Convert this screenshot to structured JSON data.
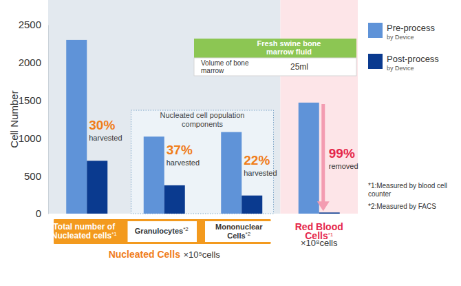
{
  "chart_data": {
    "type": "bar",
    "ylabel": "Cell Number",
    "categories": [
      "Total number of Nucleated cells",
      "Granulocytes",
      "Mononuclear Cells",
      "Red Blood Cells"
    ],
    "category_notes": [
      "*1",
      "*2",
      "*2",
      "*1"
    ],
    "series": [
      {
        "name": "Pre-process",
        "color": "#5f93d8",
        "values": [
          2300,
          1020,
          1080,
          1470
        ]
      },
      {
        "name": "Post-process",
        "color": "#0a3a8f",
        "values": [
          700,
          375,
          240,
          15
        ]
      }
    ],
    "legend_note": "by Device",
    "ylim": [
      0,
      2500
    ],
    "yticks": [
      0,
      500,
      1000,
      1500,
      2000,
      2500
    ],
    "grid": false,
    "legend": "right",
    "groups": [
      {
        "label": "Nucleated Cells",
        "unit": "×10⁵cells",
        "members": [
          0,
          1,
          2
        ]
      },
      {
        "unit": "×10⁸cells",
        "members": [
          3
        ]
      }
    ],
    "subgroup": {
      "title": "Nucleated cell population components",
      "members": [
        1,
        2
      ]
    },
    "annotations": [
      {
        "category": 0,
        "label": "30%",
        "text": "harvested"
      },
      {
        "category": 1,
        "label": "37%",
        "text": "harvested"
      },
      {
        "category": 2,
        "label": "22%",
        "text": "harvested"
      },
      {
        "category": 3,
        "label": "99%",
        "text": "removed"
      }
    ],
    "info_box": {
      "title": "Fresh swine bone marrow fluid",
      "rows": [
        [
          "Volume of bone marrow",
          "25ml"
        ]
      ]
    },
    "footnotes": [
      "*1:Measured by blood cell counter",
      "*2:Measured by FACS"
    ]
  }
}
